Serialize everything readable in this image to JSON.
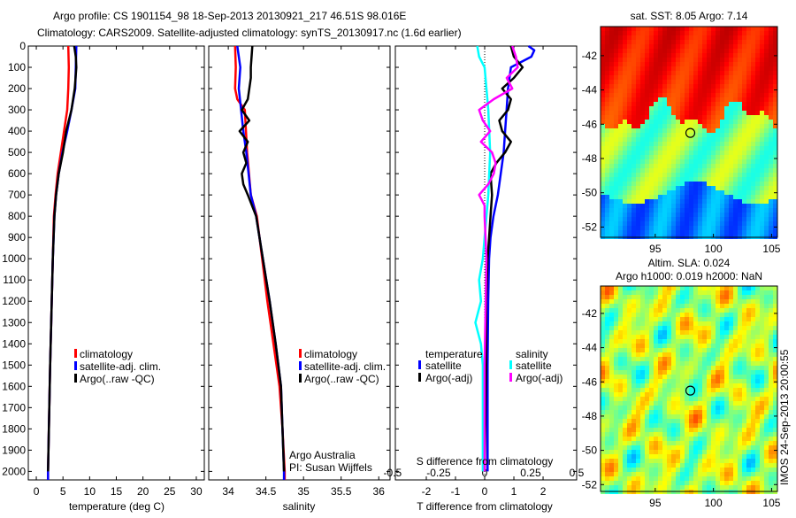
{
  "titles": {
    "line1": "Argo profile: CS 1901154_98 18-Sep-2013 20130921_217 46.51S 98.016E",
    "line2": "Climatology: CARS2009. Satellite-adjusted climatology: synTS_20130917.nc (1.6d earlier)",
    "sst_map": "sat. SST: 8.05 Argo: 7.14",
    "sla_map_1": "Altim. SLA: 0.024",
    "sla_map_2": "Argo h1000: 0.019 h2000: NaN",
    "imos_stamp": "IMOS 24-Sep-2013 20:00:55"
  },
  "colors": {
    "climatology": "#ff0000",
    "satellite": "#0000ff",
    "argo": "#000000",
    "sal_sat": "#00ffff",
    "sal_argo": "#ff00ff"
  },
  "chart_data": [
    {
      "type": "line",
      "name": "temperature",
      "xlabel": "temperature (deg C)",
      "xlim": [
        -1.5,
        31.5
      ],
      "ylim": [
        0,
        2040
      ],
      "xticks": [
        0,
        5,
        10,
        15,
        20,
        25,
        30
      ],
      "yticks": [
        0,
        100,
        200,
        300,
        400,
        500,
        600,
        700,
        800,
        900,
        1000,
        1100,
        1200,
        1300,
        1400,
        1500,
        1600,
        1700,
        1800,
        1900,
        2000
      ],
      "legend": [
        "climatology",
        "satellite-adj. clim.",
        "Argo(..raw -QC)"
      ],
      "series": [
        {
          "name": "climatology",
          "color": "#ff0000",
          "depth": [
            0,
            100,
            200,
            300,
            400,
            500,
            600,
            700,
            800,
            1000,
            1200,
            1500,
            2000,
            2040
          ],
          "values": [
            6.0,
            6.1,
            6.0,
            5.8,
            5.2,
            4.6,
            4.0,
            3.6,
            3.3,
            3.1,
            2.9,
            2.6,
            2.2,
            2.2
          ]
        },
        {
          "name": "satellite-adj. clim.",
          "color": "#0000ff",
          "depth": [
            0,
            100,
            200,
            300,
            400,
            500,
            600,
            700,
            800,
            1000,
            1200,
            1500,
            2000,
            2040
          ],
          "values": [
            7.5,
            7.4,
            7.3,
            6.6,
            5.8,
            4.9,
            4.2,
            3.7,
            3.4,
            3.1,
            2.9,
            2.6,
            2.2,
            2.2
          ]
        },
        {
          "name": "Argo(..raw -QC)",
          "color": "#000000",
          "depth": [
            0,
            50,
            100,
            200,
            300,
            400,
            500,
            600,
            700,
            800,
            1000,
            1200,
            1500,
            2000
          ],
          "values": [
            7.1,
            7.4,
            7.5,
            7.2,
            6.6,
            5.6,
            5.0,
            4.2,
            3.7,
            3.4,
            3.1,
            2.9,
            2.6,
            2.2
          ]
        }
      ]
    },
    {
      "type": "line",
      "name": "salinity",
      "xlabel": "salinity",
      "xlim": [
        33.74,
        36.15
      ],
      "ylim": [
        0,
        2040
      ],
      "xticks": [
        34,
        34.5,
        35,
        35.5,
        36
      ],
      "legend": [
        "climatology",
        "satellite-adj. clim.",
        "Argo(..raw -QC)"
      ],
      "annotation": [
        "Argo Australia",
        "PI: Susan Wijffels"
      ],
      "series": [
        {
          "name": "climatology",
          "color": "#ff0000",
          "depth": [
            0,
            100,
            200,
            250,
            300,
            500,
            700,
            800,
            1000,
            1200,
            1400,
            1600,
            1800,
            2000,
            2040
          ],
          "values": [
            34.09,
            34.1,
            34.09,
            34.12,
            34.22,
            34.25,
            34.3,
            34.38,
            34.45,
            34.52,
            34.6,
            34.68,
            34.72,
            34.75,
            34.75
          ]
        },
        {
          "name": "satellite-adj. clim.",
          "color": "#0000ff",
          "depth": [
            0,
            100,
            200,
            300,
            400,
            500,
            700,
            800,
            1000,
            1200,
            1400,
            1600,
            1800,
            2000,
            2040
          ],
          "values": [
            34.12,
            34.16,
            34.14,
            34.17,
            34.2,
            34.24,
            34.3,
            34.37,
            34.46,
            34.55,
            34.63,
            34.7,
            34.72,
            34.74,
            34.74
          ]
        },
        {
          "name": "Argo(..raw -QC)",
          "color": "#000000",
          "depth": [
            0,
            100,
            150,
            250,
            300,
            350,
            400,
            450,
            500,
            550,
            600,
            650,
            700,
            800,
            1000,
            1200,
            1400,
            1600,
            1800,
            2000
          ],
          "values": [
            34.32,
            34.3,
            34.3,
            34.26,
            34.18,
            34.28,
            34.15,
            34.26,
            34.2,
            34.24,
            34.18,
            34.2,
            34.26,
            34.37,
            34.46,
            34.55,
            34.63,
            34.7,
            34.72,
            34.74
          ]
        }
      ]
    },
    {
      "type": "line",
      "name": "difference",
      "xlabel": "T difference from climatology",
      "x2label": "S difference from climatology",
      "xlim": [
        -3.06,
        3.15
      ],
      "x2lim": [
        -0.485,
        0.5
      ],
      "xticks": [
        -2,
        -1,
        0,
        1,
        2
      ],
      "x2ticks": [
        -0.5,
        -0.25,
        0,
        0.25,
        0.5
      ],
      "legend_headers": [
        "temperature",
        "salinity"
      ],
      "legend": [
        "satellite",
        "Argo(-adj)",
        "satellite",
        "Argo(-adj)"
      ],
      "series": [
        {
          "name": "T satellite",
          "color": "#0000ff",
          "axis": "T",
          "depth": [
            0,
            20,
            50,
            100,
            200,
            300,
            400,
            500,
            600,
            700,
            800,
            900,
            1000,
            1200,
            1500,
            2000
          ],
          "values": [
            1.5,
            1.7,
            1.6,
            0.9,
            0.8,
            0.75,
            0.7,
            0.65,
            0.55,
            0.45,
            0.3,
            0.2,
            0.15,
            0.12,
            0.1,
            0.1
          ]
        },
        {
          "name": "T Argo(-adj)",
          "color": "#000000",
          "axis": "T",
          "depth": [
            0,
            50,
            100,
            150,
            200,
            250,
            300,
            350,
            400,
            450,
            500,
            550,
            600,
            700,
            800,
            900,
            1000,
            1200,
            1500,
            2000
          ],
          "values": [
            0.9,
            1.0,
            1.3,
            1.0,
            0.6,
            0.9,
            0.8,
            0.5,
            0.6,
            0.9,
            0.7,
            0.4,
            0.2,
            0.25,
            0.2,
            0.15,
            0.1,
            0.05,
            0.05,
            0.0
          ]
        },
        {
          "name": "S satellite",
          "color": "#00ffff",
          "axis": "S",
          "depth": [
            0,
            50,
            100,
            200,
            300,
            500,
            700,
            900,
            1000,
            1100,
            1200,
            1300,
            1400,
            1500,
            1700,
            2000
          ],
          "values": [
            -0.04,
            -0.03,
            0.0,
            0.01,
            0.02,
            0.03,
            0.02,
            0.0,
            -0.01,
            -0.03,
            -0.02,
            -0.05,
            -0.02,
            -0.01,
            -0.01,
            -0.01
          ]
        },
        {
          "name": "S Argo(-adj)",
          "color": "#ff00ff",
          "axis": "S",
          "depth": [
            0,
            50,
            100,
            150,
            200,
            250,
            300,
            350,
            400,
            450,
            500,
            550,
            600,
            650,
            700,
            750,
            800,
            1000,
            1500,
            2000
          ],
          "values": [
            0.15,
            0.17,
            0.18,
            0.12,
            0.15,
            0.05,
            -0.03,
            -0.01,
            0.03,
            -0.02,
            0.04,
            0.06,
            0.05,
            0.02,
            -0.03,
            0.0,
            0.0,
            0.01,
            0.0,
            0.0
          ]
        }
      ]
    },
    {
      "type": "heatmap",
      "name": "sst_map",
      "xlim": [
        90.3,
        105.5
      ],
      "ylim": [
        -52.6,
        -40.3
      ],
      "xticks": [
        95,
        100,
        105
      ],
      "yticks": [
        -42,
        -44,
        -46,
        -48,
        -50,
        -52
      ],
      "marker": {
        "lon": 98.016,
        "lat": -46.51
      }
    },
    {
      "type": "heatmap",
      "name": "sla_map",
      "xlim": [
        90.3,
        105.5
      ],
      "ylim": [
        -52.4,
        -40.4
      ],
      "xticks": [
        95,
        100,
        105
      ],
      "yticks": [
        -42,
        -44,
        -46,
        -48,
        -50,
        -52
      ],
      "marker": {
        "lon": 98.016,
        "lat": -46.51
      }
    }
  ]
}
